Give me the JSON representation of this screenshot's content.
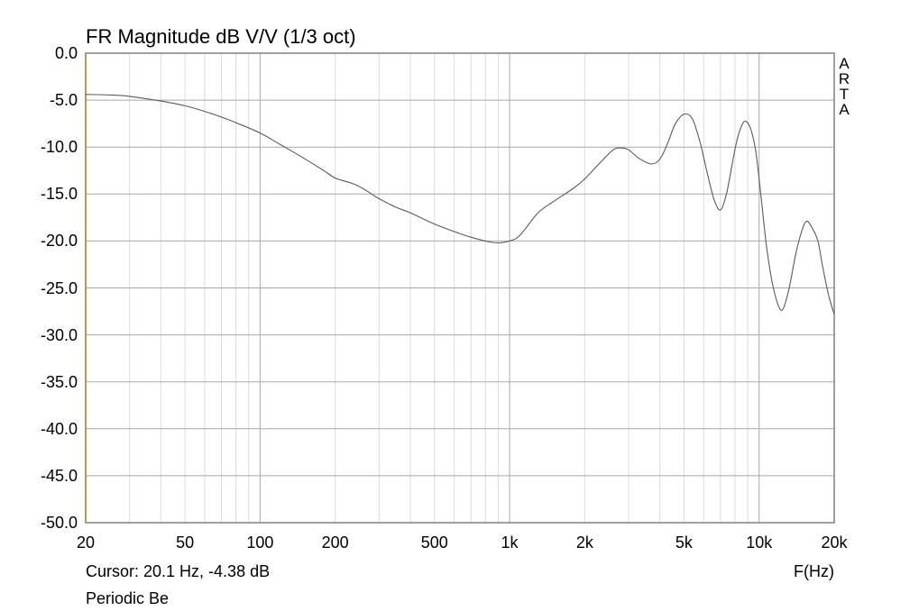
{
  "chart_data": {
    "type": "line",
    "title": "FR Magnitude dB V/V (1/3 oct)",
    "xlabel": "F(Hz)",
    "ylabel": "",
    "xscale": "log",
    "xlim": [
      20,
      20000
    ],
    "ylim": [
      -50,
      0
    ],
    "grid": true,
    "legend": null,
    "x_tick_labels": [
      "20",
      "50",
      "100",
      "200",
      "500",
      "1k",
      "2k",
      "5k",
      "10k",
      "20k"
    ],
    "x_tick_values": [
      20,
      50,
      100,
      200,
      500,
      1000,
      2000,
      5000,
      10000,
      20000
    ],
    "y_tick_labels": [
      "0.0",
      "-5.0",
      "-10.0",
      "-15.0",
      "-20.0",
      "-25.0",
      "-30.0",
      "-35.0",
      "-40.0",
      "-45.0",
      "-50.0"
    ],
    "y_tick_values": [
      0,
      -5,
      -10,
      -15,
      -20,
      -25,
      -30,
      -35,
      -40,
      -45,
      -50
    ],
    "series": [
      {
        "name": "FR Magnitude",
        "color": "#5a5a5a",
        "x": [
          20,
          25,
          30,
          40,
          50,
          60,
          70,
          80,
          100,
          120,
          150,
          180,
          200,
          230,
          250,
          280,
          300,
          350,
          400,
          500,
          600,
          700,
          800,
          900,
          1000,
          1100,
          1300,
          1500,
          1800,
          2000,
          2300,
          2600,
          2800,
          3000,
          3300,
          3700,
          4000,
          4300,
          4600,
          5000,
          5400,
          5800,
          6200,
          6600,
          7000,
          7400,
          7800,
          8200,
          8700,
          9200,
          9700,
          10200,
          10700,
          11300,
          12000,
          12500,
          13200,
          14000,
          14800,
          15500,
          16300,
          17200,
          18000,
          19000,
          20000
        ],
        "y": [
          -4.4,
          -4.45,
          -4.6,
          -5.1,
          -5.6,
          -6.2,
          -6.8,
          -7.4,
          -8.5,
          -9.7,
          -11.2,
          -12.5,
          -13.3,
          -13.8,
          -14.2,
          -15.0,
          -15.5,
          -16.4,
          -17.0,
          -18.2,
          -19.0,
          -19.6,
          -20.0,
          -20.2,
          -20.0,
          -19.4,
          -17.0,
          -15.8,
          -14.4,
          -13.4,
          -11.7,
          -10.3,
          -10.1,
          -10.3,
          -11.2,
          -11.8,
          -11.3,
          -9.6,
          -7.6,
          -6.5,
          -7.0,
          -9.5,
          -12.8,
          -15.6,
          -16.7,
          -15.0,
          -11.8,
          -9.0,
          -7.3,
          -7.9,
          -10.5,
          -15.5,
          -20.5,
          -24.5,
          -27.0,
          -27.2,
          -25.0,
          -21.5,
          -19.0,
          -17.9,
          -18.6,
          -20.0,
          -22.8,
          -25.8,
          -27.8
        ]
      }
    ],
    "annotations": [
      "ARTA",
      "Cursor: 20.1 Hz, -4.38 dB",
      "Periodic Be"
    ]
  },
  "header": {
    "title": "FR Magnitude dB V/V (1/3 oct)"
  },
  "watermark": {
    "letters": [
      "A",
      "R",
      "T",
      "A"
    ]
  },
  "footer": {
    "cursor_readout": "Cursor: 20.1 Hz, -4.38 dB",
    "device_name": "Periodic Be",
    "x_axis_label": "F(Hz)"
  },
  "colors": {
    "frame": "#808080",
    "major_grid": "#a8a8a8",
    "minor_grid": "#dcdcdc",
    "left_axis": "#9a9a40",
    "curve": "#5a5a5a"
  }
}
